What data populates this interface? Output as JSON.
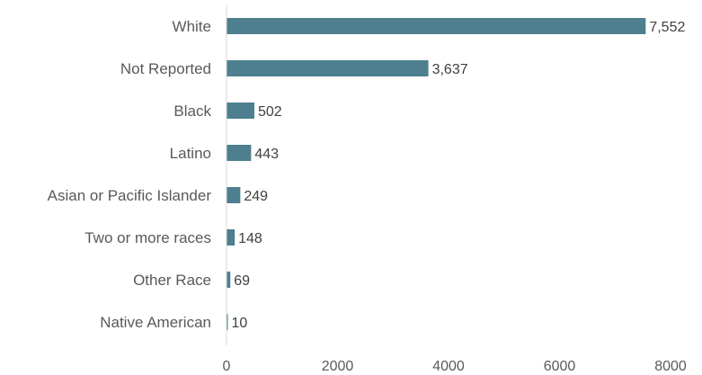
{
  "chart_data": {
    "type": "bar",
    "orientation": "horizontal",
    "categories": [
      "White",
      "Not Reported",
      "Black",
      "Latino",
      "Asian or Pacific Islander",
      "Two or more races",
      "Other Race",
      "Native American"
    ],
    "values": [
      7552,
      3637,
      502,
      443,
      249,
      148,
      69,
      10
    ],
    "value_labels": [
      "7,552",
      "3,637",
      "502",
      "443",
      "249",
      "148",
      "69",
      "10"
    ],
    "title": "",
    "xlabel": "",
    "ylabel": "",
    "xlim": [
      0,
      8000
    ],
    "xticks": [
      0,
      2000,
      4000,
      6000,
      8000
    ],
    "grid": false,
    "legend": "none",
    "colors": {
      "bar": "#4e7f8e",
      "axis": "#d9d9d9"
    }
  }
}
